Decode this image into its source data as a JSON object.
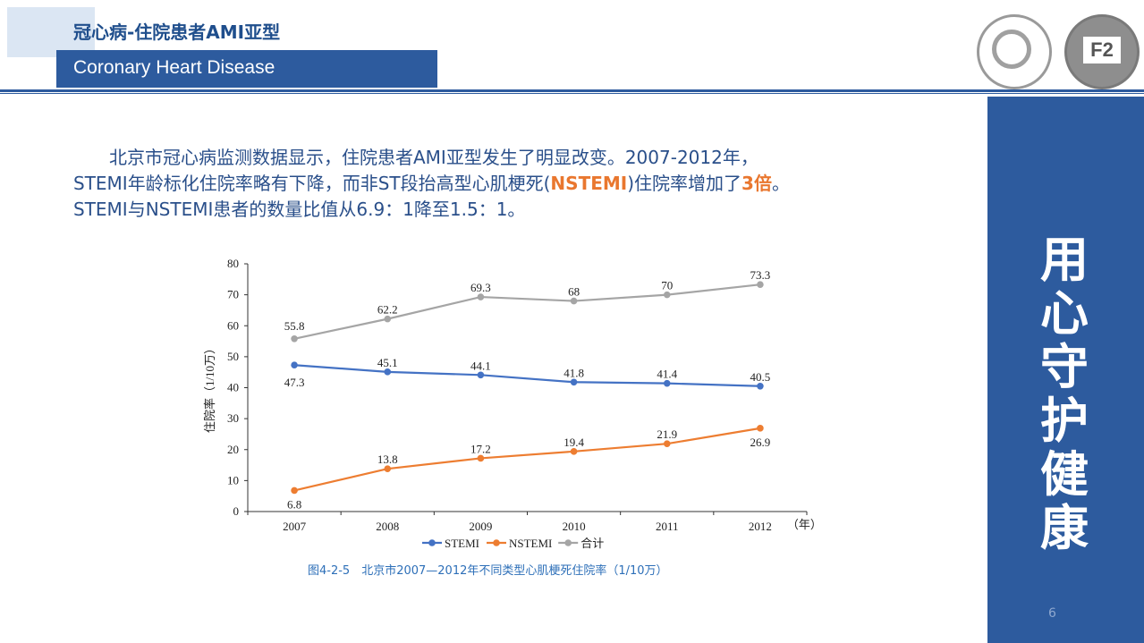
{
  "header": {
    "title_cn": "冠心病-住院患者AMI亚型",
    "title_en": "Coronary Heart Disease"
  },
  "paragraph": {
    "line1": "北京市冠心病监测数据显示，住院患者AMI亚型发生了明显改变。2007-2012年，",
    "line2_a": "STEMI年龄标化住院率略有下降，而非ST段抬高型心肌梗死(",
    "line2_hl1": "NSTEMI",
    "line2_b": ")住院率增加了",
    "line2_hl2": "3倍",
    "line2_c": "。",
    "line3": "STEMI与NSTEMI患者的数量比值从6.9：1降至1.5：1。"
  },
  "side_banner": {
    "text": "用心守护健康"
  },
  "page_number": "6",
  "colors": {
    "accent": "#2d5b9e",
    "highlight": "#e9772f"
  },
  "caption": "图4-2-5　北京市2007—2012年不同类型心肌梗死住院率（1/10万）",
  "chart_data": {
    "type": "line",
    "categories": [
      "2007",
      "2008",
      "2009",
      "2010",
      "2011",
      "2012"
    ],
    "x_unit": "（年）",
    "ylabel": "住院率（1/10万）",
    "ylim": [
      0,
      80
    ],
    "yticks": [
      0,
      10,
      20,
      30,
      40,
      50,
      60,
      70,
      80
    ],
    "legend_position": "bottom",
    "series": [
      {
        "name": "STEMI",
        "color": "#4472c4",
        "values": [
          47.3,
          45.1,
          44.1,
          41.8,
          41.4,
          40.5
        ],
        "labels": [
          "47.3",
          "45.1",
          "44.1",
          "41.8",
          "41.4",
          "40.5"
        ]
      },
      {
        "name": "NSTEMI",
        "color": "#ed7d31",
        "values": [
          6.8,
          13.8,
          17.2,
          19.4,
          21.9,
          26.9
        ],
        "labels": [
          "6.8",
          "13.8",
          "17.2",
          "19.4",
          "21.9",
          "26.9"
        ]
      },
      {
        "name": "合计",
        "color": "#a5a5a5",
        "values": [
          55.8,
          62.2,
          69.3,
          68,
          70,
          73.3
        ],
        "labels": [
          "55.8",
          "62.2",
          "69.3",
          "68",
          "70",
          "73.3"
        ]
      }
    ]
  }
}
